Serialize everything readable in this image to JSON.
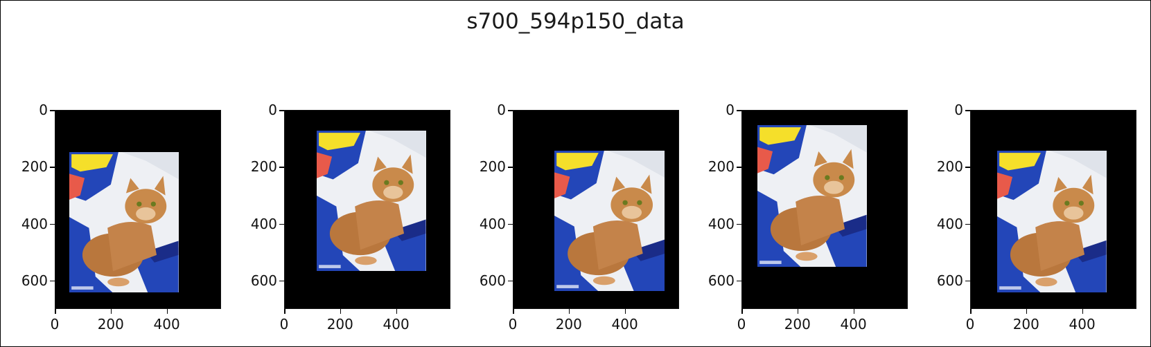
{
  "title": "s700_594p150_data",
  "image_description": "cat",
  "axes": {
    "x_ticks": [
      "0",
      "200",
      "400"
    ],
    "y_ticks": [
      "0",
      "200",
      "400",
      "600"
    ],
    "x_range": [
      0,
      594
    ],
    "y_range": [
      0,
      700
    ]
  },
  "panels": [
    {
      "photo_extent": {
        "x0": 50,
        "x1": 440,
        "y0": 145,
        "y1": 640
      }
    },
    {
      "photo_extent": {
        "x0": 115,
        "x1": 505,
        "y0": 70,
        "y1": 565
      }
    },
    {
      "photo_extent": {
        "x0": 145,
        "x1": 540,
        "y0": 140,
        "y1": 635
      }
    },
    {
      "photo_extent": {
        "x0": 55,
        "x1": 445,
        "y0": 50,
        "y1": 550
      }
    },
    {
      "photo_extent": {
        "x0": 95,
        "x1": 485,
        "y0": 140,
        "y1": 640
      }
    }
  ],
  "colors": {
    "background": "#000000",
    "fur": "#c98a4b",
    "blanket_blue": "#2346b8",
    "blanket_yellow": "#f5df2a",
    "sheet": "#eef0f4"
  }
}
